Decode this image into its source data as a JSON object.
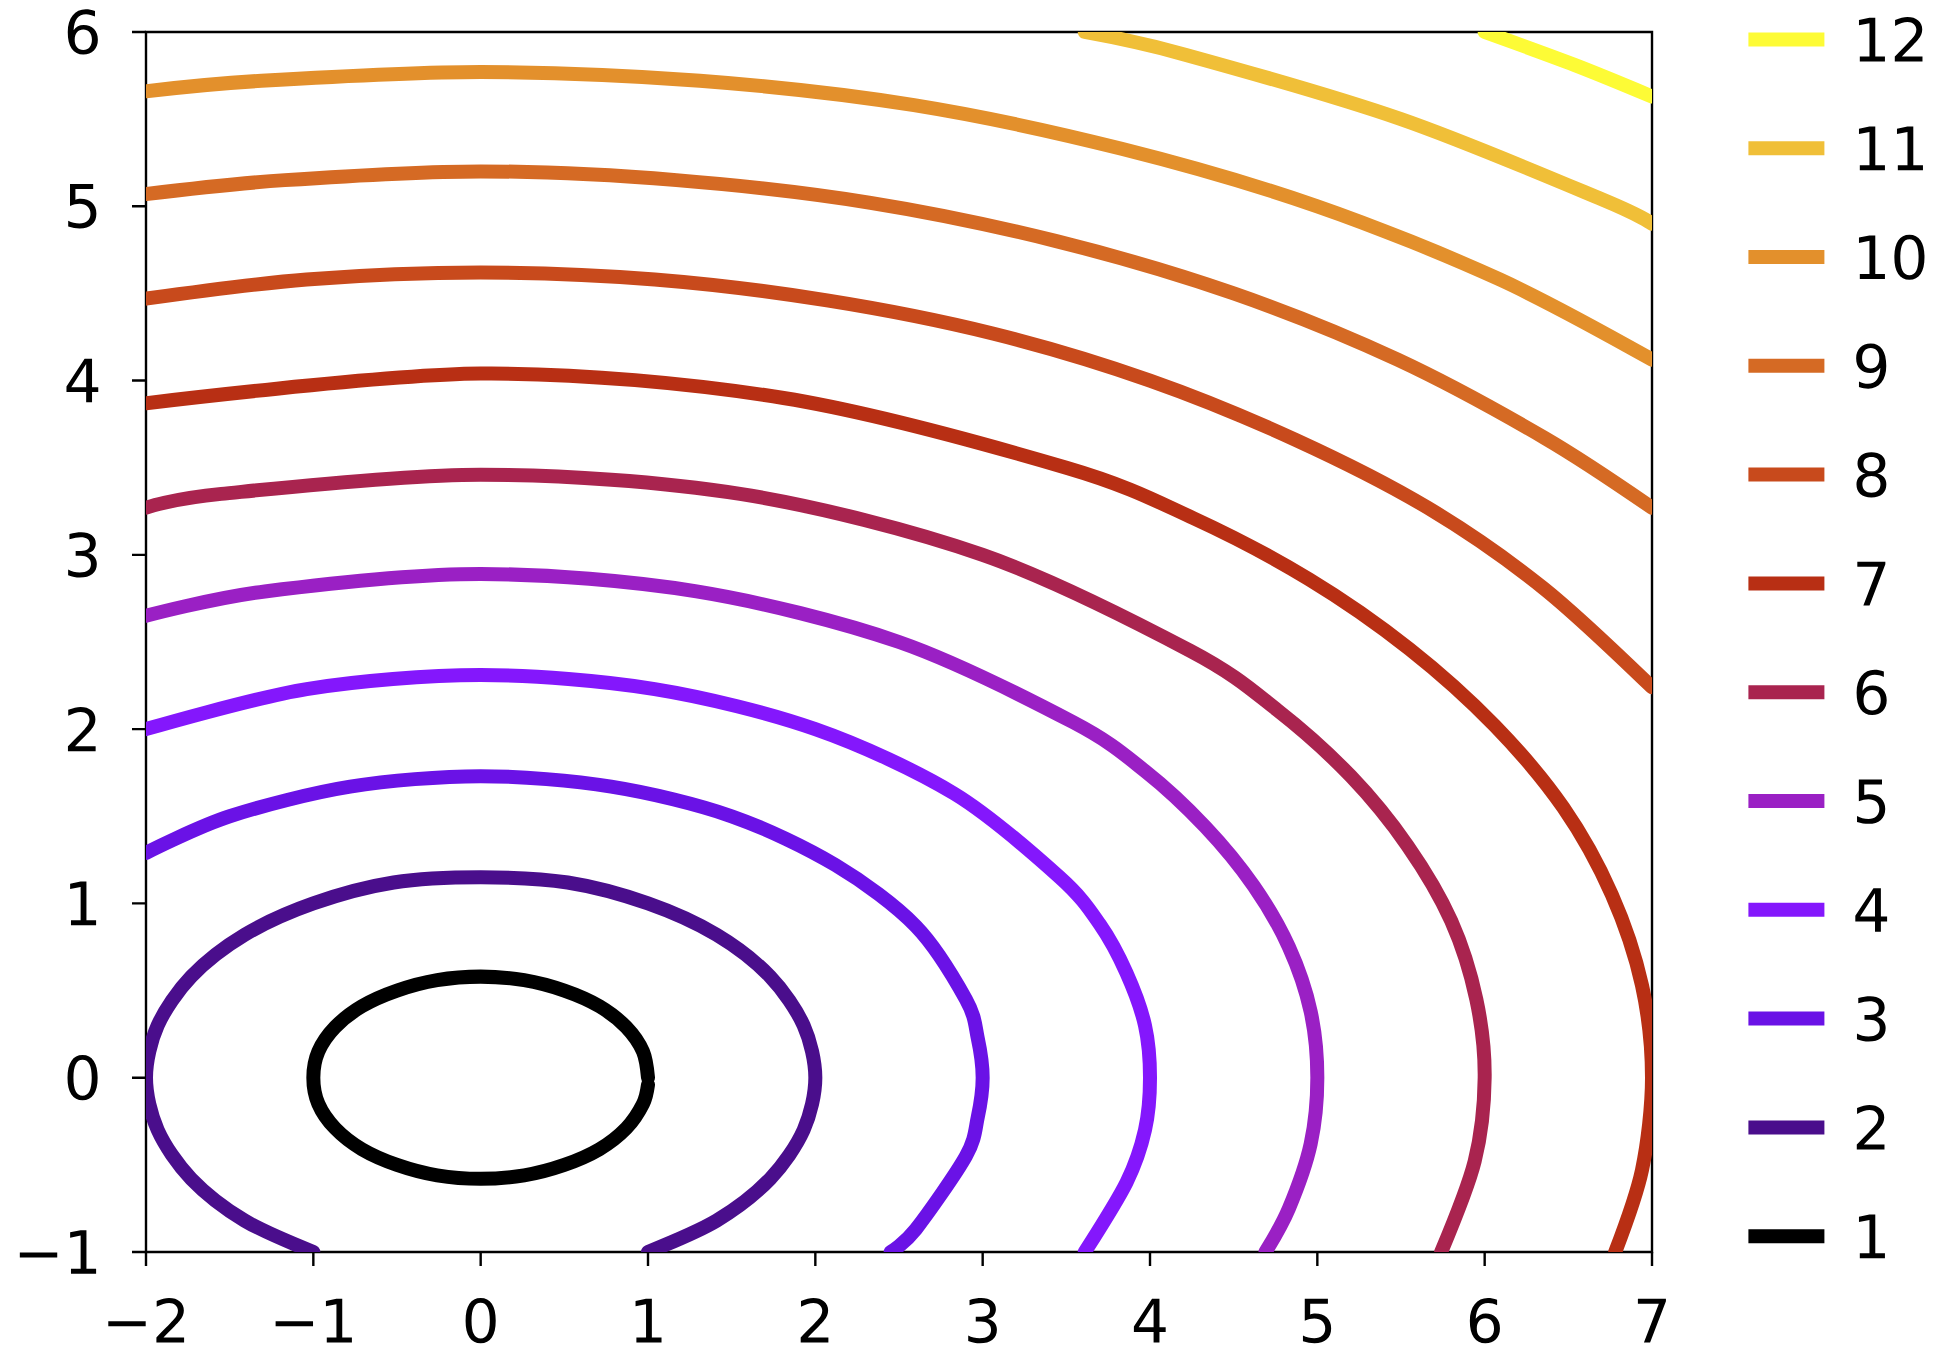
{
  "chart_data": {
    "type": "line",
    "xlim": [
      -2,
      7
    ],
    "ylim": [
      -1,
      6
    ],
    "xticks": [
      {
        "value": -2,
        "label": "−2"
      },
      {
        "value": -1,
        "label": "−1"
      },
      0,
      1,
      2,
      3,
      4,
      5,
      6,
      7
    ],
    "yticks": [
      {
        "value": -1,
        "label": "−1"
      },
      0,
      1,
      2,
      3,
      4,
      5,
      6
    ],
    "legend": "right",
    "series": [
      {
        "name": "1",
        "color": "#000000",
        "x": [
          1,
          0.97,
          0.87,
          0.71,
          0.5,
          0.26,
          0,
          -0.26,
          -0.5,
          -0.71,
          -0.87,
          -0.97,
          -1,
          -0.97,
          -0.87,
          -0.71,
          -0.5,
          -0.26,
          0,
          0.26,
          0.5,
          0.71,
          0.87,
          0.97,
          1
        ],
        "values": [
          0,
          0.15,
          0.29,
          0.41,
          0.5,
          0.56,
          0.58,
          0.56,
          0.5,
          0.41,
          0.29,
          0.15,
          0,
          -0.15,
          -0.29,
          -0.41,
          -0.5,
          -0.56,
          -0.58,
          -0.56,
          -0.5,
          -0.41,
          -0.29,
          -0.15,
          -0.04
        ]
      },
      {
        "name": "2",
        "color": "#4a0e8c",
        "x": [
          1,
          1.41,
          1.73,
          1.93,
          2,
          1.93,
          1.73,
          1.41,
          1,
          0.52,
          0,
          -0.52,
          -1,
          -1.41,
          -1.73,
          -1.93,
          -2,
          -1.93,
          -1.73,
          -1.41,
          -1
        ],
        "values": [
          -1,
          -0.82,
          -0.58,
          -0.3,
          0,
          0.3,
          0.58,
          0.82,
          1,
          1.12,
          1.15,
          1.12,
          1,
          0.82,
          0.58,
          0.3,
          0,
          -0.3,
          -0.58,
          -0.82,
          -1
        ]
      },
      {
        "name": "3",
        "color": "#6a12e6",
        "x": [
          2.45,
          2.6,
          2.9,
          2.97,
          3,
          2.97,
          2.9,
          2.6,
          2.12,
          1.5,
          0.78,
          0,
          -0.78,
          -1.5,
          -2
        ],
        "values": [
          -1,
          -0.87,
          -0.45,
          -0.23,
          0,
          0.23,
          0.45,
          0.87,
          1.22,
          1.5,
          1.67,
          1.73,
          1.67,
          1.5,
          1.29
        ]
      },
      {
        "name": "4",
        "color": "#8417fc",
        "x": [
          3.61,
          3.86,
          3.97,
          4,
          3.97,
          3.86,
          3.7,
          3.46,
          2.83,
          2,
          1.04,
          0,
          -1.04,
          -2
        ],
        "values": [
          -1,
          -0.6,
          -0.3,
          0,
          0.3,
          0.6,
          0.88,
          1.15,
          1.63,
          2,
          2.23,
          2.31,
          2.23,
          2
        ]
      },
      {
        "name": "5",
        "color": "#9a20c4",
        "x": [
          4.69,
          4.83,
          4.96,
          5,
          4.96,
          4.83,
          4.62,
          4.33,
          3.97,
          3.54,
          2.5,
          1.29,
          0,
          -1.29,
          -2
        ],
        "values": [
          -1,
          -0.75,
          -0.38,
          0,
          0.38,
          0.75,
          1.1,
          1.44,
          1.76,
          2.04,
          2.5,
          2.79,
          2.89,
          2.79,
          2.65
        ]
      },
      {
        "name": "6",
        "color": "#a9244f",
        "x": [
          5.74,
          5.94,
          6,
          5.95,
          5.8,
          5.54,
          5.2,
          4.76,
          4.24,
          3,
          1.55,
          0,
          -1.55,
          -2
        ],
        "values": [
          -1,
          -0.48,
          0,
          0.45,
          0.9,
          1.33,
          1.73,
          2.11,
          2.45,
          3,
          3.35,
          3.46,
          3.35,
          3.27
        ]
      },
      {
        "name": "7",
        "color": "#b82f14",
        "x": [
          6.78,
          6.94,
          7,
          6.94,
          6.76,
          6.47,
          6.06,
          5.55,
          4.95,
          4.26,
          3.5,
          1.81,
          0,
          -2
        ],
        "values": [
          -1,
          -0.53,
          0,
          0.53,
          1.05,
          1.55,
          2.02,
          2.46,
          2.86,
          3.21,
          3.5,
          3.9,
          4.04,
          3.87
        ]
      },
      {
        "name": "8",
        "color": "#c84a1c",
        "x": [
          7,
          6.35,
          5.66,
          4.87,
          4,
          3.06,
          2.07,
          1.04,
          0,
          -1.04,
          -2
        ],
        "values": [
          2.24,
          2.81,
          3.27,
          3.66,
          4,
          4.27,
          4.46,
          4.58,
          4.62,
          4.58,
          4.47
        ]
      },
      {
        "name": "9",
        "color": "#d56a24",
        "x": [
          7,
          6.36,
          5.48,
          4.5,
          3.44,
          2.33,
          1.17,
          0,
          -1.17,
          -2
        ],
        "values": [
          3.27,
          3.67,
          4.12,
          4.5,
          4.8,
          5.02,
          5.15,
          5.2,
          5.15,
          5.07
        ]
      },
      {
        "name": "10",
        "color": "#e3902c",
        "x": [
          7,
          6.09,
          5,
          3.83,
          2.59,
          1.31,
          0,
          -1.31,
          -2
        ],
        "values": [
          4.12,
          4.58,
          5,
          5.33,
          5.58,
          5.72,
          5.77,
          5.72,
          5.66
        ]
      },
      {
        "name": "11",
        "color": "#f0bf38",
        "x": [
          7,
          6.7,
          5.5,
          4.21,
          3.61
        ],
        "values": [
          4.9,
          5.04,
          5.5,
          5.87,
          6
        ]
      },
      {
        "name": "12",
        "color": "#fdfb36",
        "x": [
          7,
          6.54,
          6
        ],
        "values": [
          5.63,
          5.81,
          6
        ]
      }
    ]
  }
}
